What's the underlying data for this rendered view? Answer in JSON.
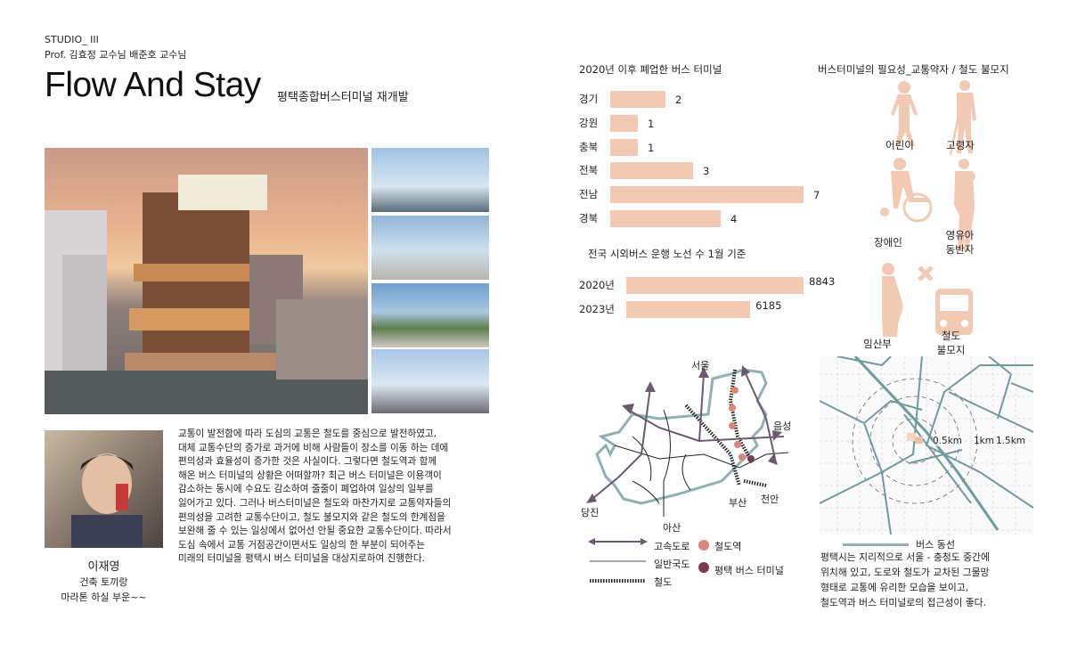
{
  "header": {
    "studio": "STUDIO_ III",
    "professors": "Prof. 김효정 교수님 배준호 교수님",
    "title": "Flow And Stay",
    "subtitle": "평택종합버스터미널 재개발"
  },
  "profile": {
    "name": "이재영",
    "line1": "건축 토끼랑",
    "line2": "마라톤 하실 부운~~"
  },
  "description": [
    "교통이 발전함에 따라 도심의 교통은 철도를 중심으로 발전하였고,",
    "대체 교통수단의 증가로 과거에 비해 사람들이 장소를 이동 하는 데에",
    "편의성과 효율성이 증가한 것은 사실이다. 그렇다면 철도역과 함께",
    "해온 버스 터미널의 상황은 어떠할까? 최근 버스 터미널은  이용객이",
    "감소하는 동시에 수요도 감소하여 줄줄이 폐업하여 일상의 일부를",
    "잃어가고 있다. 그러나 버스터미널은 철도와 마찬가지로 교통약자들의",
    "편의성을 고려한 교통수단이고, 철도 불모지와 같은 철도의 한계점을",
    "보완해 줄 수 있는 일상에서 없어선 안될 중요한 교통수단이다. 따라서",
    "도심 속에서 교통 거점공간이면서도 일상의 한 부분이 되어주는",
    "미래의 터미널을 평택시 버스 터미널을 대상지로하여 진행한다."
  ],
  "chart_data": [
    {
      "type": "bar",
      "orientation": "horizontal",
      "title": "2020년 이후 폐업한 버스 터미널",
      "categories": [
        "경기",
        "강원",
        "충북",
        "전북",
        "전남",
        "경북"
      ],
      "values": [
        2,
        1,
        1,
        3,
        7,
        4
      ],
      "color": "#f2c9b3"
    },
    {
      "type": "bar",
      "orientation": "horizontal",
      "title": "전국 시외버스  운행 노선 수 1월 기준",
      "categories": [
        "2020년",
        "2023년"
      ],
      "values": [
        8843,
        6185
      ],
      "color": "#f2c9b3"
    }
  ],
  "needs": {
    "title": "버스터미널의 필요성_교통약자 / 철도 불모지",
    "items": [
      {
        "icon": "child-icon",
        "label": "어린이"
      },
      {
        "icon": "elderly-icon",
        "label": "고령자"
      },
      {
        "icon": "wheelchair-icon",
        "label": "장애인"
      },
      {
        "icon": "parent-with-child-icon",
        "label": "영유아\n동반자"
      },
      {
        "icon": "pregnant-icon",
        "label": "임산부"
      },
      {
        "icon": "train-icon",
        "label": "철도\n불모지"
      }
    ],
    "accent": "#f2c9b3"
  },
  "map": {
    "labels": {
      "seoul": "서울",
      "eumseong": "음성",
      "dangjin": "당진",
      "asan": "아산",
      "busan": "부산",
      "cheonan": "천안"
    },
    "legend": {
      "highway": "고속도로",
      "national_road": "일반국도",
      "railway": "철도",
      "station": "철도역",
      "terminal": "평택 버스 터미널"
    },
    "colors": {
      "boundary": "#8fb1b3",
      "highway": "#6b5a6e",
      "station": "#d9877c",
      "terminal": "#7a3a52"
    }
  },
  "site_map": {
    "radii": [
      "0.5km",
      "1km",
      "1.5km"
    ],
    "legend": "버스 동선",
    "route_color": "#6f9a9e",
    "text": [
      "평택시는 지리적으로 서울 - 충청도 중간에",
      "위치해 있고, 도로와 철도가 교차된 그물망",
      "형태로  교통에  유리한  모습을  보이고,",
      "철도역과 버스 터미널로의 접근성이 좋다."
    ]
  }
}
